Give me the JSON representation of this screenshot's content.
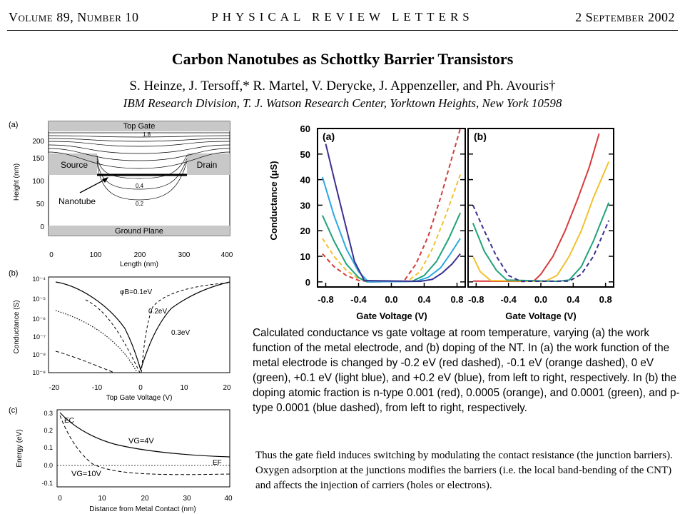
{
  "header": {
    "volume": "Volume 89, Number 10",
    "journal": "PHYSICAL REVIEW LETTERS",
    "date": "2 September 2002"
  },
  "article": {
    "title": "Carbon Nanotubes as Schottky Barrier Transistors",
    "authors": "S. Heinze, J. Tersoff,* R. Martel, V. Derycke, J. Appenzeller, and Ph. Avouris†",
    "affiliation": "IBM Research Division, T. J. Watson Research Center, Yorktown Heights, New York 10598"
  },
  "left_figure": {
    "panel_a": {
      "label": "(a)",
      "top_gate": "Top Gate",
      "source": "Source",
      "drain": "Drain",
      "nanotube": "Nanotube",
      "ground_plane": "Ground Plane",
      "contour_labels": [
        "1.8",
        "0.4",
        "0.2"
      ],
      "ylabel": "Height (nm)",
      "xlabel": "Length (nm)",
      "yticks": [
        "0",
        "50",
        "100",
        "150",
        "200"
      ],
      "xticks": [
        "0",
        "100",
        "200",
        "300",
        "400"
      ]
    },
    "panel_b": {
      "label": "(b)",
      "ylabel": "Conductance (S)",
      "xlabel": "Top Gate Voltage (V)",
      "yticks": [
        "10⁻⁹",
        "10⁻⁸",
        "10⁻⁷",
        "10⁻⁶",
        "10⁻⁵",
        "10⁻⁴"
      ],
      "xticks": [
        "-20",
        "-10",
        "0",
        "10",
        "20"
      ],
      "curve_labels": [
        "φB=0.1eV",
        "0.2eV",
        "0.3eV"
      ]
    },
    "panel_c": {
      "label": "(c)",
      "ylabel": "Energy (eV)",
      "xlabel": "Distance from Metal Contact (nm)",
      "yticks": [
        "-0.1",
        "0.0",
        "0.1",
        "0.2",
        "0.3"
      ],
      "xticks": [
        "0",
        "10",
        "20",
        "30",
        "40"
      ],
      "ec_label": "EC",
      "ef_label": "EF",
      "vg4": "VG=4V",
      "vg10": "VG=10V"
    }
  },
  "chart_data": [
    {
      "type": "line",
      "panel": "(a)",
      "xlabel": "Gate Voltage (V)",
      "ylabel": "Conductance (μS)",
      "xlim": [
        -0.9,
        0.9
      ],
      "ylim": [
        -2,
        60
      ],
      "xticks": [
        "-0.8",
        "-0.4",
        "0.0",
        "0.4",
        "0.8"
      ],
      "yticks": [
        "0",
        "10",
        "20",
        "30",
        "40",
        "50",
        "60"
      ],
      "series": [
        {
          "color": "#d93a3a",
          "dash": true,
          "points": [
            [
              -0.84,
              11
            ],
            [
              -0.7,
              6
            ],
            [
              -0.55,
              2.5
            ],
            [
              -0.4,
              0.6
            ],
            [
              -0.25,
              0
            ],
            [
              0.15,
              0.2
            ],
            [
              0.3,
              7
            ],
            [
              0.45,
              18
            ],
            [
              0.6,
              33
            ],
            [
              0.75,
              50
            ],
            [
              0.84,
              60
            ]
          ]
        },
        {
          "color": "#f2c12e",
          "dash": true,
          "points": [
            [
              -0.84,
              17
            ],
            [
              -0.7,
              10
            ],
            [
              -0.55,
              4.5
            ],
            [
              -0.4,
              1.2
            ],
            [
              -0.25,
              0
            ],
            [
              0.2,
              0.3
            ],
            [
              0.35,
              4
            ],
            [
              0.5,
              13
            ],
            [
              0.65,
              25
            ],
            [
              0.84,
              42
            ]
          ]
        },
        {
          "color": "#1fa37a",
          "dash": false,
          "points": [
            [
              -0.84,
              26
            ],
            [
              -0.7,
              16
            ],
            [
              -0.55,
              7
            ],
            [
              -0.4,
              1.7
            ],
            [
              -0.3,
              0
            ],
            [
              0.25,
              0.2
            ],
            [
              0.4,
              2.5
            ],
            [
              0.55,
              8
            ],
            [
              0.7,
              17
            ],
            [
              0.84,
              27
            ]
          ]
        },
        {
          "color": "#2aa9e0",
          "dash": false,
          "points": [
            [
              -0.84,
              41
            ],
            [
              -0.7,
              26
            ],
            [
              -0.55,
              13
            ],
            [
              -0.4,
              4
            ],
            [
              -0.28,
              0
            ],
            [
              0.3,
              0.2
            ],
            [
              0.45,
              1.8
            ],
            [
              0.6,
              5.5
            ],
            [
              0.72,
              11
            ],
            [
              0.84,
              17
            ]
          ]
        },
        {
          "color": "#3b2f8f",
          "dash": false,
          "points": [
            [
              -0.8,
              54
            ],
            [
              -0.68,
              38
            ],
            [
              -0.55,
              21
            ],
            [
              -0.45,
              8
            ],
            [
              -0.33,
              0.5
            ],
            [
              0.35,
              0.2
            ],
            [
              0.5,
              1
            ],
            [
              0.62,
              3.5
            ],
            [
              0.74,
              7
            ],
            [
              0.84,
              11
            ]
          ]
        }
      ]
    },
    {
      "type": "line",
      "panel": "(b)",
      "xlabel": "Gate Voltage (V)",
      "ylabel": "",
      "xlim": [
        -0.9,
        0.9
      ],
      "ylim": [
        -2,
        60
      ],
      "xticks": [
        "-0.8",
        "-0.4",
        "0.0",
        "0.4",
        "0.8"
      ],
      "series": [
        {
          "color": "#d93a3a",
          "dash": false,
          "points": [
            [
              -0.84,
              0.3
            ],
            [
              -0.2,
              0.2
            ],
            [
              -0.08,
              0.5
            ],
            [
              0.0,
              3
            ],
            [
              0.15,
              10
            ],
            [
              0.3,
              20
            ],
            [
              0.45,
              32
            ],
            [
              0.6,
              45
            ],
            [
              0.72,
              58
            ]
          ]
        },
        {
          "color": "#f2c12e",
          "dash": false,
          "points": [
            [
              -0.84,
              10
            ],
            [
              -0.75,
              4
            ],
            [
              -0.62,
              0.5
            ],
            [
              0.05,
              0.2
            ],
            [
              0.2,
              2.5
            ],
            [
              0.35,
              10
            ],
            [
              0.5,
              20
            ],
            [
              0.65,
              33
            ],
            [
              0.84,
              47
            ]
          ]
        },
        {
          "color": "#1fa37a",
          "dash": false,
          "points": [
            [
              -0.84,
              23
            ],
            [
              -0.7,
              12
            ],
            [
              -0.55,
              4.5
            ],
            [
              -0.42,
              0.7
            ],
            [
              0.2,
              0.2
            ],
            [
              0.35,
              0.7
            ],
            [
              0.5,
              6
            ],
            [
              0.65,
              16
            ],
            [
              0.84,
              31
            ]
          ]
        },
        {
          "color": "#3b2f8f",
          "dash": true,
          "points": [
            [
              -0.84,
              30
            ],
            [
              -0.7,
              20
            ],
            [
              -0.55,
              10
            ],
            [
              -0.4,
              2.5
            ],
            [
              -0.25,
              0.2
            ],
            [
              0.35,
              0.3
            ],
            [
              0.5,
              3
            ],
            [
              0.65,
              10
            ],
            [
              0.84,
              24
            ]
          ]
        }
      ]
    }
  ],
  "chart_labels": {
    "panel_a": "(a)",
    "panel_b": "(b)",
    "ylabel": "Conductance (μS)",
    "xlabel_a": "Gate Voltage (V)",
    "xlabel_b": "Gate Voltage (V)"
  },
  "caption": "Calculated conductance vs gate voltage at room temperature, varying (a) the work function of the metal electrode, and (b) doping of the NT. In (a) the work function of the metal electrode is changed by -0.2 eV (red dashed), -0.1 eV (orange dashed), 0 eV (green), +0.1 eV (light blue), and +0.2 eV (blue), from left to right, respectively. In (b) the doping atomic fraction is n-type 0.001 (red), 0.0005 (orange), and 0.0001 (green), and p-type 0.0001 (blue dashed), from left to right, respectively.",
  "body_text": "Thus the gate field induces switching by modulating the contact resistance (the junction barriers). Oxygen adsorption at the junctions modifies the barriers (i.e. the local band-bending of the CNT) and affects the injection of carriers (holes or electrons)."
}
